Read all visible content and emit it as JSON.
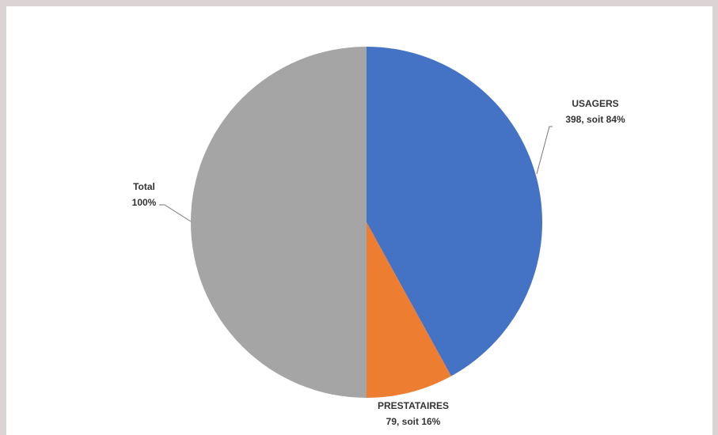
{
  "chart_data": {
    "type": "pie",
    "categories": [
      "USAGERS",
      "PRESTATAIRES",
      "Total"
    ],
    "values": [
      84,
      16,
      100
    ],
    "value_labels": [
      "398, soit 84%",
      "79, soit 16%",
      "100%"
    ],
    "colors": [
      "#4472c4",
      "#ed7d31",
      "#a5a5a5"
    ]
  }
}
